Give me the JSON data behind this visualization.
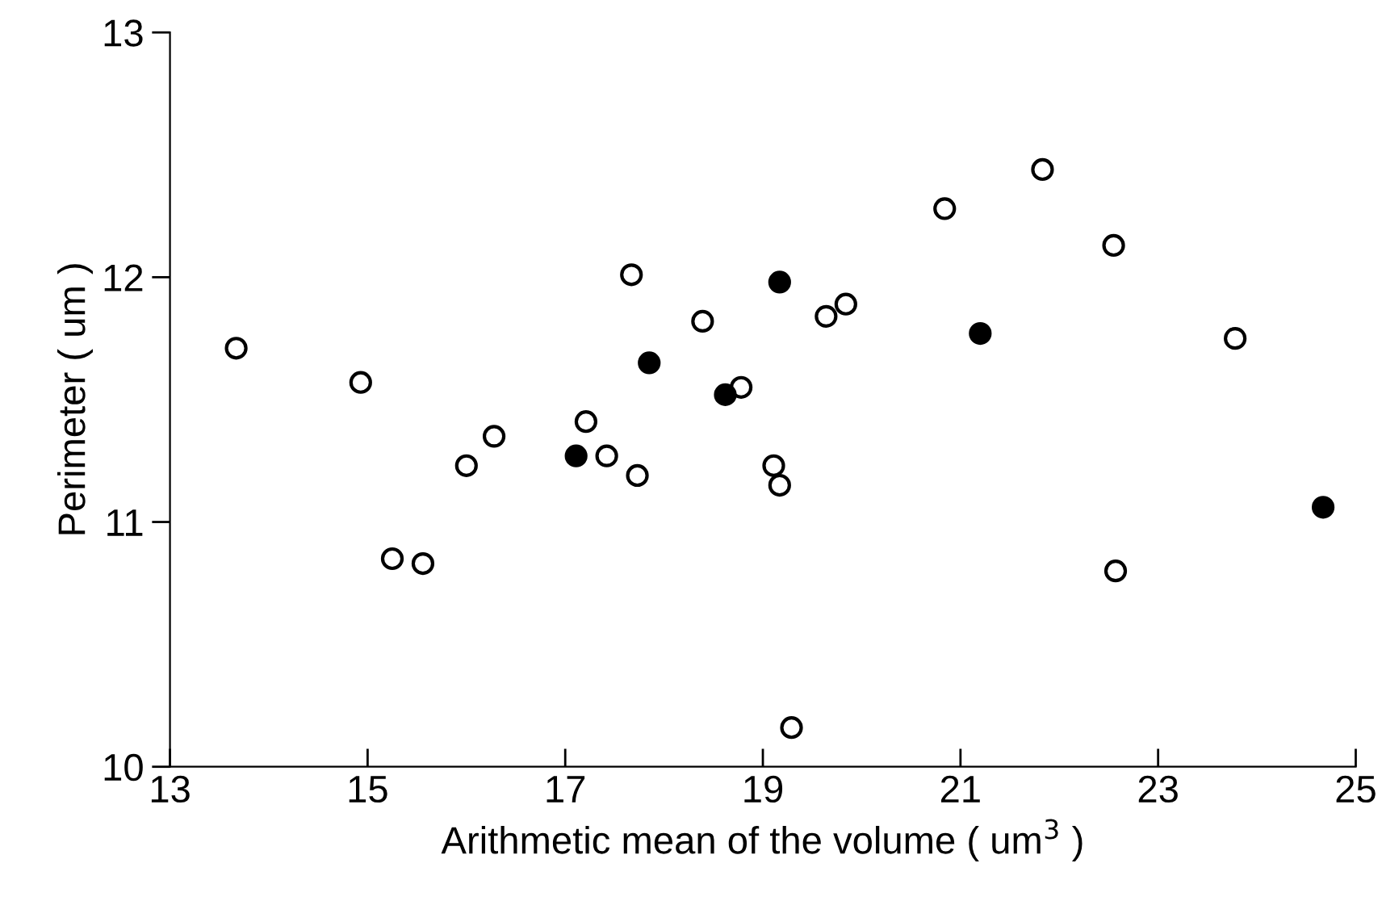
{
  "chart_data": {
    "type": "scatter",
    "xlabel": "Arithmetic mean of the volume ( um$^{3}$ )",
    "ylabel": "Perimeter ( um )",
    "xlim": [
      13,
      25
    ],
    "ylim": [
      10,
      13
    ],
    "xticks": [
      13,
      15,
      17,
      19,
      21,
      23,
      25
    ],
    "yticks": [
      10,
      11,
      12,
      13
    ],
    "grid": false,
    "legend": false,
    "marker": "circle",
    "series": [
      {
        "color": "#ffffff",
        "x": [
          13.67,
          14.93,
          15.25,
          15.56,
          16.0,
          16.28,
          17.21,
          17.42,
          17.67,
          17.73,
          18.39,
          18.78,
          19.11,
          19.17,
          19.29,
          19.64,
          19.84,
          20.84,
          21.83,
          22.55,
          22.57,
          23.78
        ],
        "values": [
          11.71,
          11.57,
          10.85,
          10.83,
          11.23,
          11.35,
          11.41,
          11.27,
          12.01,
          11.19,
          11.82,
          11.55,
          11.23,
          11.15,
          10.16,
          11.84,
          11.89,
          12.28,
          12.44,
          12.13,
          10.8,
          11.75
        ]
      },
      {
        "color": "#000000",
        "x": [
          17.11,
          17.85,
          18.62,
          19.17,
          21.2,
          24.67
        ],
        "values": [
          11.27,
          11.65,
          11.52,
          11.98,
          11.77,
          11.06
        ]
      }
    ]
  }
}
